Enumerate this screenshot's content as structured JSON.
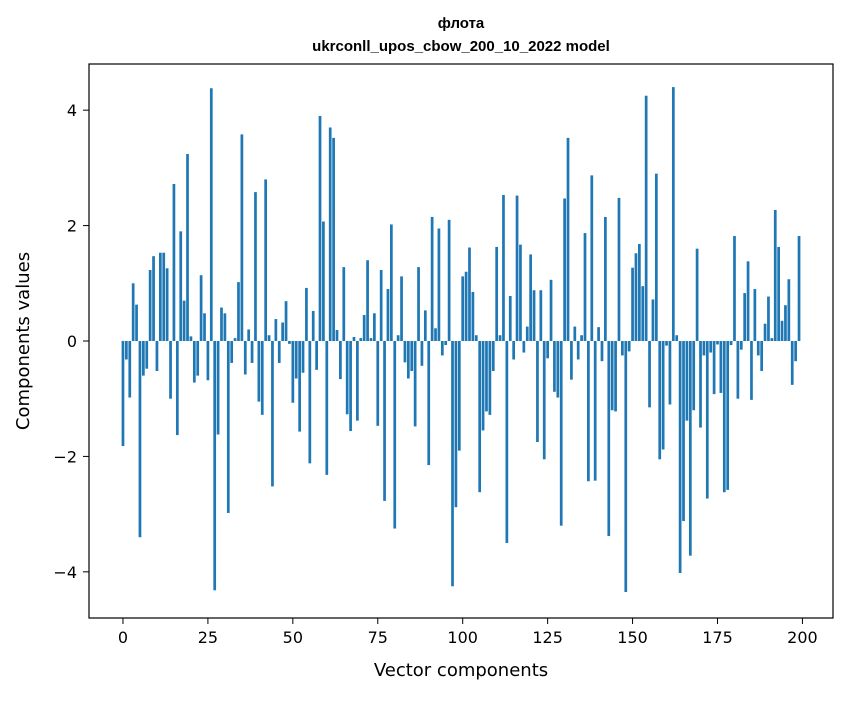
{
  "chart_data": {
    "type": "bar",
    "title": "флота",
    "subtitle": "ukrconll_upos_cbow_200_10_2022 model",
    "xlabel": "Vector components",
    "ylabel": "Components values",
    "xlim": [
      -10,
      209
    ],
    "ylim": [
      -4.8,
      4.8
    ],
    "xticks": [
      0,
      25,
      50,
      75,
      100,
      125,
      150,
      175,
      200
    ],
    "yticks": [
      -4,
      -2,
      0,
      2,
      4
    ],
    "grid": false,
    "bar_color": "#1f77b4",
    "x": [
      0,
      1,
      2,
      3,
      4,
      5,
      6,
      7,
      8,
      9,
      10,
      11,
      12,
      13,
      14,
      15,
      16,
      17,
      18,
      19,
      20,
      21,
      22,
      23,
      24,
      25,
      26,
      27,
      28,
      29,
      30,
      31,
      32,
      33,
      34,
      35,
      36,
      37,
      38,
      39,
      40,
      41,
      42,
      43,
      44,
      45,
      46,
      47,
      48,
      49,
      50,
      51,
      52,
      53,
      54,
      55,
      56,
      57,
      58,
      59,
      60,
      61,
      62,
      63,
      64,
      65,
      66,
      67,
      68,
      69,
      70,
      71,
      72,
      73,
      74,
      75,
      76,
      77,
      78,
      79,
      80,
      81,
      82,
      83,
      84,
      85,
      86,
      87,
      88,
      89,
      90,
      91,
      92,
      93,
      94,
      95,
      96,
      97,
      98,
      99,
      100,
      101,
      102,
      103,
      104,
      105,
      106,
      107,
      108,
      109,
      110,
      111,
      112,
      113,
      114,
      115,
      116,
      117,
      118,
      119,
      120,
      121,
      122,
      123,
      124,
      125,
      126,
      127,
      128,
      129,
      130,
      131,
      132,
      133,
      134,
      135,
      136,
      137,
      138,
      139,
      140,
      141,
      142,
      143,
      144,
      145,
      146,
      147,
      148,
      149,
      150,
      151,
      152,
      153,
      154,
      155,
      156,
      157,
      158,
      159,
      160,
      161,
      162,
      163,
      164,
      165,
      166,
      167,
      168,
      169,
      170,
      171,
      172,
      173,
      174,
      175,
      176,
      177,
      178,
      179,
      180,
      181,
      182,
      183,
      184,
      185,
      186,
      187,
      188,
      189,
      190,
      191,
      192,
      193,
      194,
      195,
      196,
      197,
      198,
      199
    ],
    "values": [
      -1.82,
      -0.32,
      -0.98,
      1.0,
      0.63,
      -3.4,
      -0.6,
      -0.48,
      1.23,
      1.47,
      -0.52,
      1.53,
      1.53,
      1.26,
      -1.0,
      2.72,
      -1.63,
      1.9,
      0.7,
      3.24,
      0.08,
      -0.72,
      -0.6,
      1.14,
      0.48,
      -0.68,
      4.38,
      -4.32,
      -1.62,
      0.58,
      0.48,
      -2.98,
      -0.38,
      0.05,
      1.02,
      3.58,
      -0.58,
      0.2,
      -0.38,
      2.58,
      -1.05,
      -1.28,
      2.8,
      0.1,
      -2.52,
      0.38,
      -0.38,
      0.32,
      0.69,
      -0.05,
      -1.07,
      -0.65,
      -1.57,
      -0.55,
      0.92,
      -2.12,
      0.52,
      -0.5,
      3.9,
      2.07,
      -2.32,
      3.7,
      3.52,
      0.19,
      -0.66,
      1.28,
      -1.27,
      -1.56,
      0.07,
      -1.38,
      0.05,
      0.45,
      1.4,
      0.05,
      0.48,
      -1.47,
      1.23,
      -2.77,
      0.9,
      2.02,
      -3.25,
      0.1,
      1.12,
      -0.37,
      -0.65,
      -0.52,
      -1.48,
      1.28,
      -0.43,
      0.53,
      -2.15,
      2.15,
      0.22,
      1.95,
      -0.25,
      -0.07,
      2.1,
      -4.25,
      -2.88,
      -1.9,
      1.12,
      1.2,
      1.62,
      0.85,
      0.1,
      -2.62,
      -1.55,
      -1.22,
      -1.28,
      -0.52,
      1.63,
      0.1,
      2.53,
      -3.5,
      0.78,
      -0.32,
      2.52,
      1.67,
      -0.2,
      0.25,
      1.5,
      0.88,
      -1.75,
      0.88,
      -2.05,
      -0.3,
      1.06,
      -0.88,
      -0.98,
      -3.2,
      2.47,
      3.52,
      -0.67,
      0.25,
      -0.32,
      0.1,
      1.87,
      -2.43,
      2.87,
      -2.42,
      0.24,
      -0.35,
      2.15,
      -3.38,
      -1.2,
      -1.22,
      2.48,
      -0.25,
      -4.35,
      -0.18,
      1.27,
      1.52,
      1.68,
      0.95,
      4.25,
      -1.15,
      0.72,
      2.9,
      -2.05,
      -1.88,
      -0.08,
      -1.1,
      4.4,
      0.1,
      -4.02,
      -3.12,
      -1.38,
      -3.72,
      -1.2,
      1.6,
      -1.5,
      -0.25,
      -2.73,
      -0.2,
      -0.92,
      -0.06,
      -0.9,
      -2.62,
      -2.58,
      -0.07,
      1.82,
      -1.0,
      -0.15,
      0.83,
      1.38,
      -1.02,
      0.9,
      -0.25,
      -0.52,
      0.3,
      0.77,
      0.05,
      2.27,
      1.63,
      0.35,
      0.62,
      1.07,
      -0.76,
      -0.35,
      1.82
    ]
  }
}
